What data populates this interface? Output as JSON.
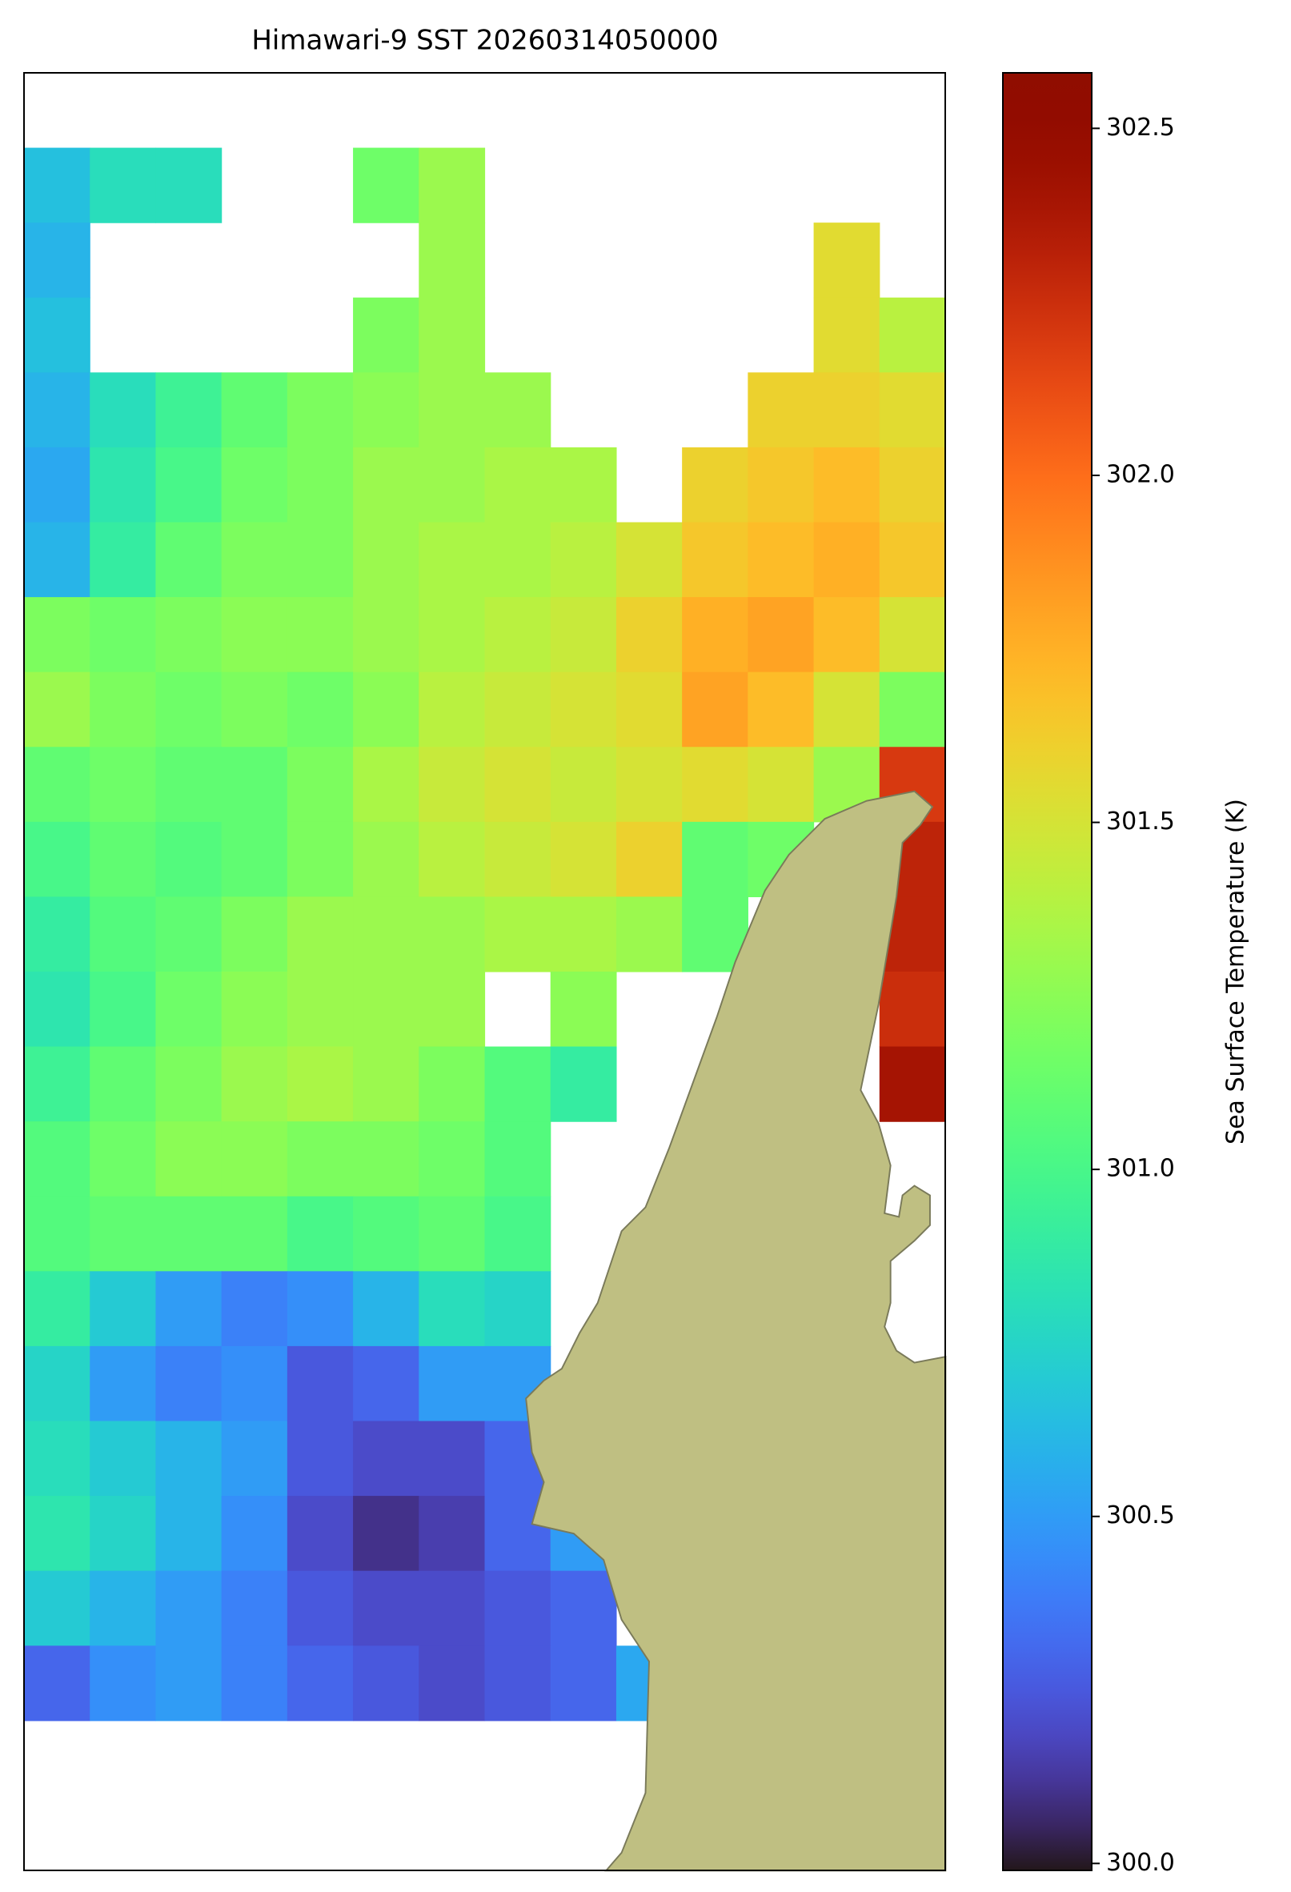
{
  "chart_data": {
    "type": "heatmap",
    "title": "Himawari-9 SST 20260314050000",
    "colormap": "turbo",
    "colorbar_label": "Sea Surface Temperature (K)",
    "clim": [
      299.99,
      302.58
    ],
    "cticks": [
      {
        "value": 300.0,
        "label": "300.0"
      },
      300.5,
      {
        "value": 301.0,
        "label": "301.0"
      },
      301.5,
      {
        "value": 302.0,
        "label": "302.0"
      },
      302.5
    ],
    "z": [
      [
        null,
        null,
        null,
        null,
        null,
        null,
        null,
        null,
        null,
        null,
        null,
        null,
        null,
        null
      ],
      [
        300.65,
        300.8,
        300.8,
        null,
        null,
        301.15,
        301.3,
        null,
        null,
        null,
        null,
        null,
        null,
        null
      ],
      [
        300.6,
        null,
        null,
        null,
        null,
        null,
        301.3,
        null,
        null,
        null,
        null,
        null,
        301.55,
        null
      ],
      [
        300.65,
        null,
        null,
        null,
        null,
        301.2,
        301.3,
        null,
        null,
        null,
        null,
        null,
        301.55,
        301.4
      ],
      [
        300.6,
        300.8,
        300.95,
        301.1,
        301.2,
        301.25,
        301.3,
        301.3,
        null,
        null,
        null,
        301.6,
        301.6,
        301.55
      ],
      [
        300.55,
        300.85,
        301.0,
        301.15,
        301.2,
        301.3,
        301.3,
        301.35,
        301.35,
        null,
        301.6,
        301.65,
        301.7,
        301.6
      ],
      [
        300.6,
        300.9,
        301.1,
        301.2,
        301.2,
        301.3,
        301.35,
        301.35,
        301.4,
        301.5,
        301.65,
        301.7,
        301.75,
        301.65
      ],
      [
        301.2,
        301.15,
        301.2,
        301.25,
        301.25,
        301.3,
        301.35,
        301.4,
        301.45,
        301.6,
        301.75,
        301.8,
        301.7,
        301.5
      ],
      [
        301.3,
        301.2,
        301.15,
        301.2,
        301.15,
        301.25,
        301.4,
        301.45,
        301.5,
        301.55,
        301.8,
        301.7,
        301.5,
        301.2
      ],
      [
        301.1,
        301.15,
        301.1,
        301.1,
        301.2,
        301.35,
        301.45,
        301.5,
        301.45,
        301.5,
        301.55,
        301.5,
        301.3,
        302.2
      ],
      [
        301.0,
        301.1,
        301.05,
        301.1,
        301.2,
        301.3,
        301.4,
        301.45,
        301.5,
        301.6,
        301.1,
        301.15,
        null,
        302.3
      ],
      [
        300.9,
        301.05,
        301.1,
        301.2,
        301.3,
        301.3,
        301.3,
        301.35,
        301.35,
        301.3,
        301.1,
        null,
        null,
        302.3
      ],
      [
        300.85,
        301.0,
        301.15,
        301.25,
        301.3,
        301.3,
        301.3,
        null,
        301.25,
        null,
        null,
        null,
        null,
        302.25
      ],
      [
        300.95,
        301.1,
        301.2,
        301.3,
        301.35,
        301.3,
        301.2,
        301.05,
        300.9,
        null,
        null,
        null,
        null,
        302.4
      ],
      [
        301.05,
        301.15,
        301.25,
        301.25,
        301.2,
        301.2,
        301.15,
        301.05,
        null,
        null,
        null,
        null,
        null,
        null
      ],
      [
        301.05,
        301.1,
        301.1,
        301.1,
        301.0,
        301.05,
        301.1,
        301.0,
        null,
        null,
        null,
        null,
        null,
        null
      ],
      [
        300.9,
        300.7,
        300.5,
        300.4,
        300.45,
        300.6,
        300.8,
        300.75,
        null,
        null,
        null,
        null,
        null,
        null
      ],
      [
        300.75,
        300.5,
        300.4,
        300.45,
        300.25,
        300.3,
        300.5,
        300.5,
        null,
        null,
        null,
        null,
        null,
        null
      ],
      [
        300.8,
        300.7,
        300.6,
        300.5,
        300.25,
        300.2,
        300.2,
        300.3,
        null,
        null,
        null,
        null,
        null,
        null
      ],
      [
        300.85,
        300.75,
        300.6,
        300.45,
        300.2,
        300.1,
        300.15,
        300.3,
        300.5,
        null,
        null,
        null,
        null,
        null
      ],
      [
        300.7,
        300.6,
        300.5,
        300.4,
        300.25,
        300.2,
        300.2,
        300.25,
        300.3,
        null,
        null,
        null,
        null,
        null
      ],
      [
        300.3,
        300.45,
        300.5,
        300.4,
        300.3,
        300.25,
        300.2,
        300.25,
        300.3,
        300.55,
        null,
        null,
        null,
        null
      ],
      [
        null,
        null,
        null,
        null,
        null,
        null,
        null,
        null,
        null,
        null,
        null,
        null,
        null,
        null
      ],
      [
        null,
        null,
        null,
        null,
        null,
        null,
        null,
        null,
        null,
        null,
        null,
        null,
        null,
        null
      ]
    ]
  }
}
